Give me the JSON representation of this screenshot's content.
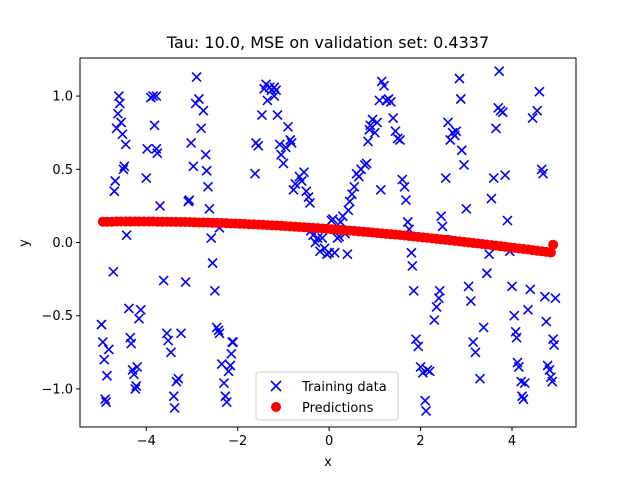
{
  "chart_data": {
    "type": "scatter",
    "title": "Tau: 10.0, MSE on validation set: 0.4337",
    "xlabel": "x",
    "ylabel": "y",
    "xlim": [
      -5.45,
      5.4
    ],
    "ylim": [
      -1.26,
      1.26
    ],
    "xticks": [
      -4,
      -2,
      0,
      2,
      4
    ],
    "yticks": [
      -1.0,
      -0.5,
      0.0,
      0.5,
      1.0
    ],
    "xtick_labels": [
      "−4",
      "−2",
      "0",
      "2",
      "4"
    ],
    "ytick_labels": [
      "−1.0",
      "−0.5",
      "0.0",
      "0.5",
      "1.0"
    ],
    "grid": false,
    "legend_position": "lower center",
    "series": [
      {
        "name": "Training data",
        "marker": "x",
        "color": "#0000ff",
        "points": [
          [
            -4.98,
            -0.56
          ],
          [
            -4.95,
            -0.68
          ],
          [
            -4.92,
            -0.8
          ],
          [
            -4.9,
            -1.07
          ],
          [
            -4.88,
            -1.09
          ],
          [
            -4.86,
            -0.91
          ],
          [
            -4.82,
            -0.73
          ],
          [
            -4.72,
            -0.2
          ],
          [
            -4.7,
            0.35
          ],
          [
            -4.68,
            0.42
          ],
          [
            -4.65,
            0.78
          ],
          [
            -4.62,
            0.88
          ],
          [
            -4.6,
            1.0
          ],
          [
            -4.58,
            0.95
          ],
          [
            -4.55,
            0.82
          ],
          [
            -4.52,
            0.74
          ],
          [
            -4.5,
            0.5
          ],
          [
            -4.48,
            0.52
          ],
          [
            -4.45,
            0.67
          ],
          [
            -4.43,
            0.05
          ],
          [
            -4.38,
            -0.45
          ],
          [
            -4.35,
            -0.65
          ],
          [
            -4.33,
            -0.69
          ],
          [
            -4.3,
            -0.87
          ],
          [
            -4.27,
            -0.9
          ],
          [
            -4.24,
            -1.0
          ],
          [
            -4.22,
            -0.98
          ],
          [
            -4.2,
            -0.85
          ],
          [
            -4.16,
            -0.52
          ],
          [
            -4.12,
            -0.46
          ],
          [
            -4.0,
            0.44
          ],
          [
            -3.98,
            0.64
          ],
          [
            -3.9,
            0.99
          ],
          [
            -3.85,
            1.0
          ],
          [
            -3.82,
            0.8
          ],
          [
            -3.78,
            0.64
          ],
          [
            -3.76,
            0.61
          ],
          [
            -3.7,
            0.25
          ],
          [
            -3.62,
            -0.26
          ],
          [
            -3.55,
            -0.62
          ],
          [
            -3.52,
            -0.67
          ],
          [
            -3.46,
            -0.75
          ],
          [
            -3.4,
            -1.05
          ],
          [
            -3.38,
            -1.13
          ],
          [
            -3.34,
            -0.95
          ],
          [
            -3.3,
            -0.93
          ],
          [
            -3.24,
            -0.62
          ],
          [
            -3.14,
            -0.27
          ],
          [
            -3.08,
            0.28
          ],
          [
            -3.06,
            0.29
          ],
          [
            -3.02,
            0.68
          ],
          [
            -2.97,
            0.52
          ],
          [
            -2.92,
            0.95
          ],
          [
            -2.9,
            1.13
          ],
          [
            -2.85,
            0.98
          ],
          [
            -2.8,
            0.78
          ],
          [
            -2.75,
            0.9
          ],
          [
            -2.7,
            0.6
          ],
          [
            -2.68,
            0.49
          ],
          [
            -2.65,
            0.38
          ],
          [
            -2.62,
            0.23
          ],
          [
            -2.58,
            0.03
          ],
          [
            -2.55,
            -0.14
          ],
          [
            -2.5,
            -0.33
          ],
          [
            -2.46,
            -0.58
          ],
          [
            -2.42,
            -0.6
          ],
          [
            -2.4,
            -0.62
          ],
          [
            -2.35,
            -0.83
          ],
          [
            -2.3,
            -0.96
          ],
          [
            -2.27,
            -1.05
          ],
          [
            -2.24,
            -1.09
          ],
          [
            -2.2,
            -0.88
          ],
          [
            -2.16,
            -0.84
          ],
          [
            -2.14,
            -0.76
          ],
          [
            -2.12,
            -0.68
          ],
          [
            -2.1,
            -0.68
          ],
          [
            -1.62,
            0.47
          ],
          [
            -1.6,
            0.68
          ],
          [
            -1.55,
            0.66
          ],
          [
            -1.47,
            0.87
          ],
          [
            -1.42,
            1.05
          ],
          [
            -1.38,
            1.08
          ],
          [
            -1.35,
            0.97
          ],
          [
            -1.3,
            1.06
          ],
          [
            -1.26,
            1.04
          ],
          [
            -1.2,
            1.0
          ],
          [
            -1.16,
            1.04
          ],
          [
            -1.13,
            0.87
          ],
          [
            -1.08,
            0.67
          ],
          [
            -1.05,
            0.6
          ],
          [
            -1.0,
            0.54
          ],
          [
            -0.95,
            0.65
          ],
          [
            -0.9,
            0.79
          ],
          [
            -0.85,
            0.7
          ],
          [
            -0.82,
            0.68
          ],
          [
            -0.78,
            0.36
          ],
          [
            -0.74,
            0.4
          ],
          [
            -0.65,
            0.45
          ],
          [
            -0.6,
            0.42
          ],
          [
            -0.55,
            0.48
          ],
          [
            -0.5,
            0.35
          ],
          [
            -0.45,
            0.31
          ],
          [
            -0.42,
            0.27
          ],
          [
            -0.4,
            0.08
          ],
          [
            -0.35,
            0.05
          ],
          [
            -0.3,
            0.0
          ],
          [
            -0.25,
            0.03
          ],
          [
            -0.2,
            -0.06
          ],
          [
            -0.15,
            0.03
          ],
          [
            -0.1,
            -0.04
          ],
          [
            -0.05,
            -0.08
          ],
          [
            0.0,
            -0.07
          ],
          [
            0.05,
            0.15
          ],
          [
            0.08,
            0.16
          ],
          [
            0.12,
            -0.07
          ],
          [
            0.18,
            0.03
          ],
          [
            0.22,
            0.04
          ],
          [
            0.25,
            0.14
          ],
          [
            0.3,
            0.18
          ],
          [
            0.35,
            0.06
          ],
          [
            0.4,
            -0.08
          ],
          [
            0.42,
            0.22
          ],
          [
            0.45,
            0.28
          ],
          [
            0.5,
            0.33
          ],
          [
            0.55,
            0.38
          ],
          [
            0.6,
            0.47
          ],
          [
            0.65,
            0.45
          ],
          [
            0.7,
            0.5
          ],
          [
            0.78,
            0.53
          ],
          [
            0.82,
            0.54
          ],
          [
            0.85,
            0.69
          ],
          [
            0.88,
            0.77
          ],
          [
            0.9,
            0.8
          ],
          [
            0.95,
            0.84
          ],
          [
            1.0,
            0.75
          ],
          [
            1.05,
            0.82
          ],
          [
            1.1,
            0.97
          ],
          [
            1.15,
            1.1
          ],
          [
            1.2,
            1.07
          ],
          [
            1.25,
            0.97
          ],
          [
            1.3,
            0.98
          ],
          [
            1.35,
            0.96
          ],
          [
            1.4,
            0.85
          ],
          [
            1.45,
            0.76
          ],
          [
            1.5,
            0.71
          ],
          [
            1.55,
            0.7
          ],
          [
            1.6,
            0.43
          ],
          [
            1.65,
            0.38
          ],
          [
            1.68,
            0.29
          ],
          [
            1.72,
            0.14
          ],
          [
            1.75,
            0.09
          ],
          [
            1.8,
            -0.07
          ],
          [
            1.82,
            -0.16
          ],
          [
            1.85,
            -0.33
          ],
          [
            1.9,
            -0.66
          ],
          [
            1.95,
            -0.71
          ],
          [
            2.0,
            -0.85
          ],
          [
            2.05,
            -0.89
          ],
          [
            2.1,
            -1.08
          ],
          [
            2.12,
            -1.15
          ],
          [
            2.15,
            -0.87
          ],
          [
            2.2,
            -0.88
          ],
          [
            2.3,
            -0.53
          ],
          [
            2.35,
            -0.44
          ],
          [
            2.4,
            -0.38
          ],
          [
            2.42,
            -0.33
          ],
          [
            2.45,
            0.18
          ],
          [
            2.48,
            0.11
          ],
          [
            2.52,
            0.02
          ],
          [
            2.55,
            0.44
          ],
          [
            2.6,
            0.82
          ],
          [
            2.65,
            0.7
          ],
          [
            2.7,
            0.75
          ],
          [
            2.75,
            0.73
          ],
          [
            2.78,
            0.76
          ],
          [
            2.85,
            1.12
          ],
          [
            2.88,
            0.98
          ],
          [
            2.9,
            0.63
          ],
          [
            2.95,
            0.53
          ],
          [
            3.0,
            0.23
          ],
          [
            3.05,
            -0.3
          ],
          [
            3.1,
            -0.4
          ],
          [
            3.15,
            -0.68
          ],
          [
            3.2,
            -0.75
          ],
          [
            3.3,
            -0.93
          ],
          [
            3.38,
            -0.58
          ],
          [
            3.45,
            -0.21
          ],
          [
            3.5,
            -0.08
          ],
          [
            3.55,
            0.3
          ],
          [
            3.6,
            0.44
          ],
          [
            3.65,
            0.78
          ],
          [
            3.7,
            0.92
          ],
          [
            3.75,
            0.9
          ],
          [
            3.8,
            0.89
          ],
          [
            3.85,
            0.46
          ],
          [
            3.9,
            0.15
          ],
          [
            3.95,
            -0.06
          ],
          [
            4.0,
            -0.3
          ],
          [
            4.05,
            -0.5
          ],
          [
            4.08,
            -0.61
          ],
          [
            4.1,
            -0.65
          ],
          [
            4.12,
            -0.82
          ],
          [
            4.15,
            -0.85
          ],
          [
            4.2,
            -0.95
          ],
          [
            4.22,
            -1.05
          ],
          [
            4.25,
            -1.07
          ],
          [
            4.28,
            -0.96
          ],
          [
            4.35,
            -0.46
          ],
          [
            4.4,
            -0.32
          ],
          [
            4.45,
            0.85
          ],
          [
            4.55,
            0.9
          ],
          [
            4.6,
            1.03
          ],
          [
            4.65,
            0.5
          ],
          [
            4.68,
            0.47
          ],
          [
            4.72,
            -0.37
          ],
          [
            4.75,
            -0.54
          ],
          [
            4.78,
            -0.84
          ],
          [
            4.82,
            -0.87
          ],
          [
            4.85,
            -0.92
          ],
          [
            4.88,
            -0.95
          ],
          [
            4.9,
            -0.66
          ],
          [
            4.92,
            -0.7
          ],
          [
            4.95,
            -0.38
          ],
          [
            -1.2,
            1.06
          ],
          [
            1.13,
            0.36
          ],
          [
            3.72,
            1.17
          ],
          [
            -3.78,
            1.0
          ],
          [
            -2.4,
            0.1
          ]
        ]
      },
      {
        "name": "Predictions",
        "marker": "o",
        "color": "#ff0000",
        "x": [
          -4.95,
          -4.85,
          -4.75,
          -4.65,
          -4.55,
          -4.45,
          -4.35,
          -4.25,
          -4.15,
          -4.05,
          -3.95,
          -3.85,
          -3.75,
          -3.65,
          -3.55,
          -3.45,
          -3.35,
          -3.25,
          -3.15,
          -3.05,
          -2.95,
          -2.85,
          -2.75,
          -2.65,
          -2.55,
          -2.45,
          -2.35,
          -2.25,
          -2.15,
          -2.05,
          -1.95,
          -1.85,
          -1.75,
          -1.65,
          -1.55,
          -1.45,
          -1.35,
          -1.25,
          -1.15,
          -1.05,
          -0.95,
          -0.85,
          -0.75,
          -0.65,
          -0.55,
          -0.45,
          -0.35,
          -0.25,
          -0.15,
          -0.05,
          0.05,
          0.15,
          0.25,
          0.35,
          0.45,
          0.55,
          0.65,
          0.75,
          0.85,
          0.95,
          1.05,
          1.15,
          1.25,
          1.35,
          1.45,
          1.55,
          1.65,
          1.75,
          1.85,
          1.95,
          2.05,
          2.15,
          2.25,
          2.35,
          2.45,
          2.55,
          2.65,
          2.75,
          2.85,
          2.95,
          3.05,
          3.15,
          3.25,
          3.35,
          3.45,
          3.55,
          3.65,
          3.75,
          3.85,
          3.95,
          4.05,
          4.15,
          4.25,
          4.35,
          4.45,
          4.55,
          4.65,
          4.75,
          4.85,
          4.9
        ],
        "y": [
          0.142,
          0.142,
          0.142,
          0.143,
          0.143,
          0.143,
          0.143,
          0.143,
          0.143,
          0.143,
          0.143,
          0.143,
          0.142,
          0.142,
          0.142,
          0.141,
          0.141,
          0.14,
          0.14,
          0.139,
          0.138,
          0.137,
          0.137,
          0.136,
          0.135,
          0.134,
          0.133,
          0.132,
          0.13,
          0.129,
          0.128,
          0.127,
          0.125,
          0.124,
          0.122,
          0.121,
          0.119,
          0.117,
          0.116,
          0.114,
          0.112,
          0.11,
          0.108,
          0.106,
          0.104,
          0.102,
          0.1,
          0.098,
          0.096,
          0.093,
          0.091,
          0.089,
          0.086,
          0.084,
          0.081,
          0.079,
          0.076,
          0.073,
          0.071,
          0.068,
          0.065,
          0.062,
          0.059,
          0.057,
          0.054,
          0.051,
          0.048,
          0.044,
          0.041,
          0.038,
          0.035,
          0.032,
          0.028,
          0.025,
          0.022,
          0.018,
          0.015,
          0.011,
          0.008,
          0.004,
          0.001,
          -0.003,
          -0.007,
          -0.01,
          -0.014,
          -0.018,
          -0.021,
          -0.025,
          -0.029,
          -0.033,
          -0.037,
          -0.041,
          -0.044,
          -0.048,
          -0.052,
          -0.056,
          -0.06,
          -0.064,
          -0.068,
          -0.015
        ]
      }
    ]
  }
}
